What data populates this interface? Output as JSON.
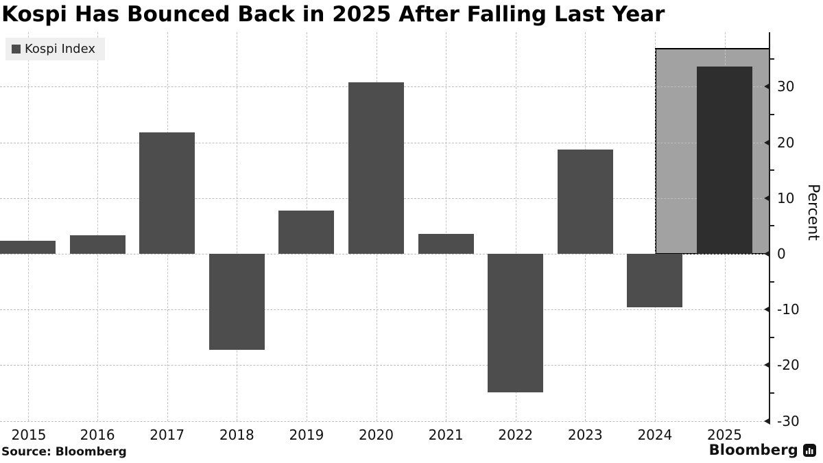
{
  "title": "Kospi Has Bounced Back in 2025 After Falling Last Year",
  "legend": {
    "label": "Kospi Index",
    "swatch_color": "#4d4d4d"
  },
  "source": "Source: Bloomberg",
  "branding": {
    "wordmark": "Bloomberg"
  },
  "chart_data": {
    "type": "bar",
    "title": "Kospi Has Bounced Back in 2025 After Falling Last Year",
    "series_name": "Kospi Index",
    "categories": [
      "2015",
      "2016",
      "2017",
      "2018",
      "2019",
      "2020",
      "2021",
      "2022",
      "2023",
      "2024",
      "2025"
    ],
    "values": [
      2.4,
      3.3,
      21.8,
      -17.3,
      7.7,
      30.8,
      3.6,
      -24.9,
      18.7,
      -9.6,
      33.6
    ],
    "xlabel": "",
    "ylabel": "Percent",
    "ylim": [
      -30,
      40
    ],
    "yticks": [
      30,
      20,
      10,
      0,
      -10,
      -20,
      -30
    ],
    "ytick_labels": [
      "30",
      "20",
      "10",
      "0",
      "-10",
      "-20",
      "-30"
    ],
    "minor_ytick_step": 5,
    "grid": true,
    "legend_position": "top-left",
    "bar_color": "#4d4d4d",
    "highlight": {
      "category": "2025",
      "bar_color": "#2e2e2e",
      "box_top_value": 37,
      "box_fill": "#a2a2a2",
      "box_border": "#000000",
      "note": "current year highlighted with gray box from 0 to ~37%"
    }
  }
}
